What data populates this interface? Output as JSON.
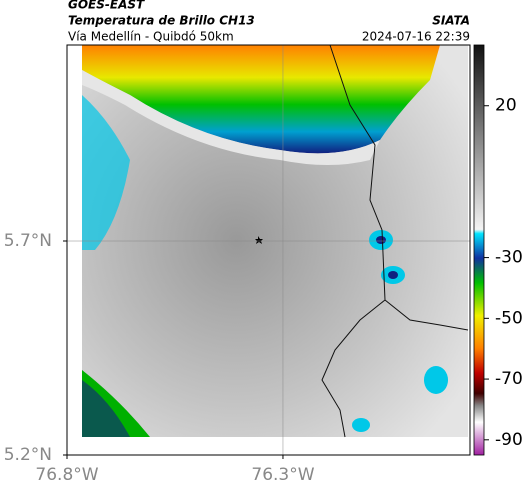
{
  "header": {
    "title": "GOES-EAST",
    "subtitle": "Temperatura de Brillo CH13",
    "source": "SIATA",
    "route": "Vía Medellín - Quibdó 50km",
    "timestamp": "2024-07-16 22:39"
  },
  "map": {
    "xlim": [
      -76.8,
      -75.867
    ],
    "ylim": [
      5.2,
      6.158
    ],
    "xticks": [
      {
        "value": -76.8,
        "label": "76.8°W"
      },
      {
        "value": -76.3,
        "label": "76.3°W"
      }
    ],
    "yticks": [
      {
        "value": 5.7,
        "label": "5.7°N"
      },
      {
        "value": 5.2,
        "label": "5.2°N"
      }
    ]
  },
  "colorbar": {
    "lim": [
      40,
      -95
    ],
    "ticks": [
      20,
      -30,
      -50,
      -70,
      -90
    ]
  }
}
